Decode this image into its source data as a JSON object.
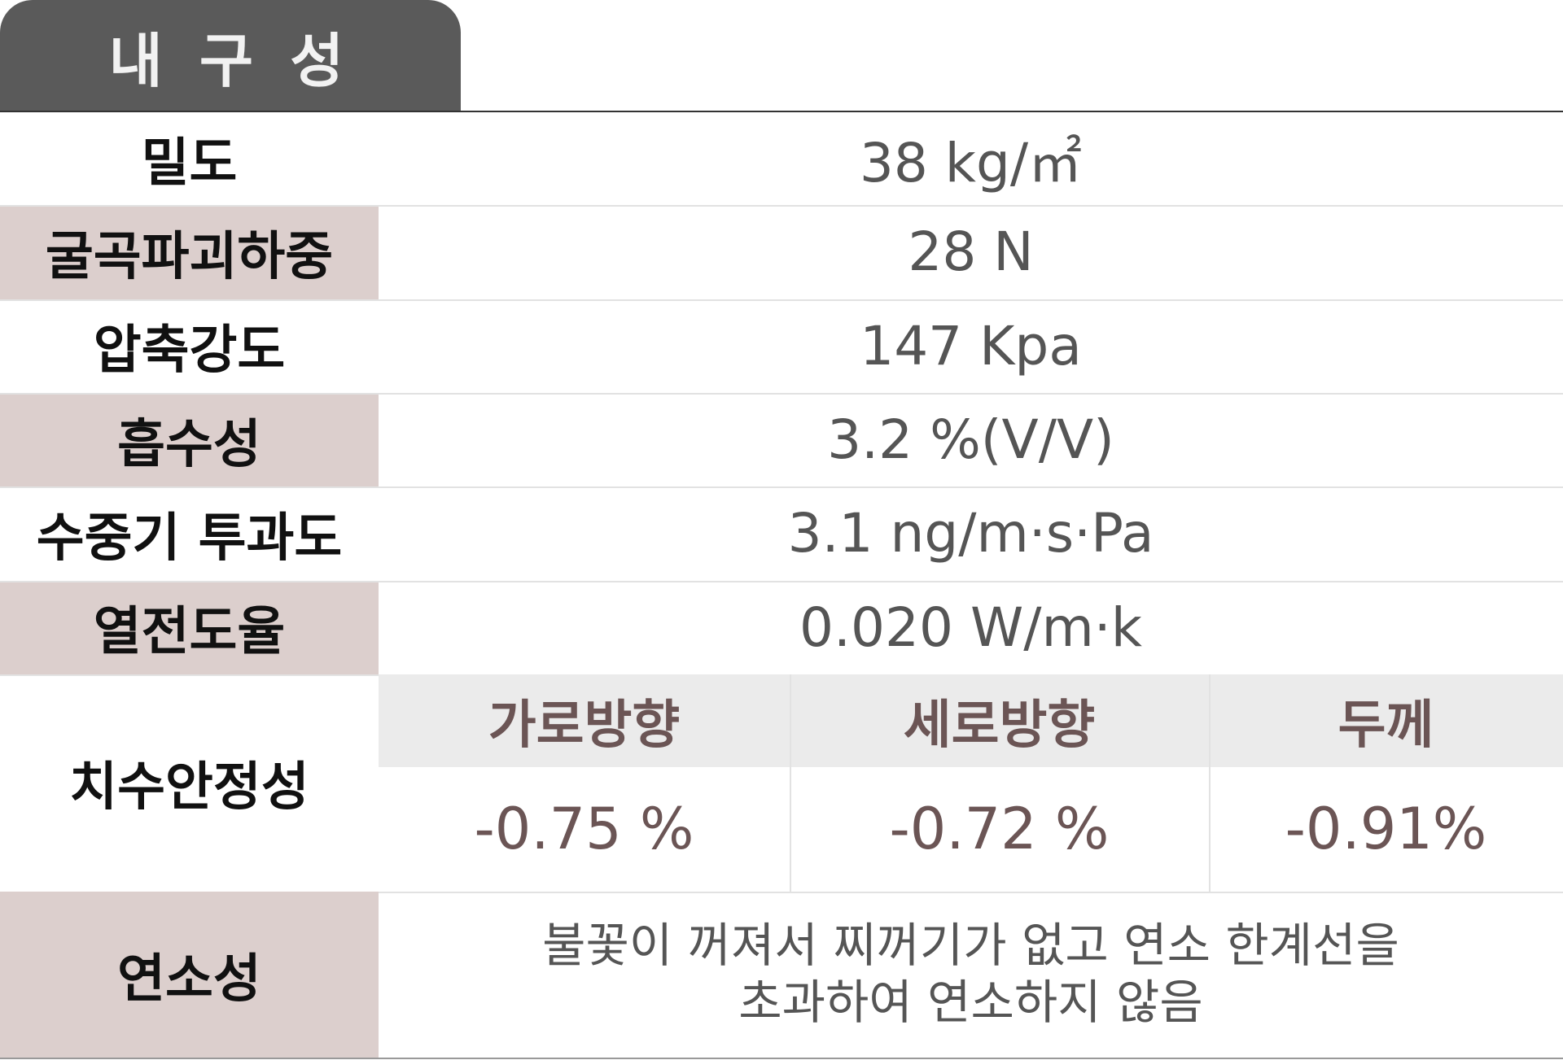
{
  "title": "내 구 성",
  "table": {
    "rows": [
      [
        "밀도",
        "38 kg/㎡"
      ],
      [
        "굴곡파괴하중",
        "28 N"
      ],
      [
        "압축강도",
        "147 Kpa"
      ],
      [
        "흡수성",
        "3.2 %(V/V)"
      ],
      [
        "수중기 투과도",
        "3.1 ng/m·s·Pa"
      ],
      [
        "열전도율",
        "0.020 W/m·k"
      ]
    ],
    "dimensional_stability": {
      "label": "치수안정성",
      "headers": [
        "가로방향",
        "세로방향",
        "두께"
      ],
      "values": [
        "-0.75 %",
        "-0.72 %",
        "-0.91%"
      ]
    },
    "combustibility": {
      "label": "연소성",
      "value_lines": [
        "불꽃이 꺼져서 찌꺼기가 없고 연소 한계선을",
        "초과하여 연소하지 않음"
      ]
    }
  }
}
